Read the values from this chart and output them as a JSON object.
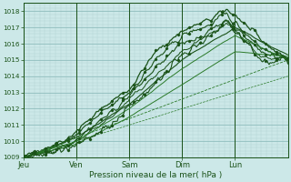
{
  "xlabel": "Pression niveau de la mer( hPa )",
  "bg_color": "#cce8e8",
  "grid_minor_color": "#aad0d0",
  "grid_major_color": "#88b8b8",
  "line_color_dark": "#1a5218",
  "line_color_mid": "#2a7a28",
  "ylim": [
    1009,
    1018.5
  ],
  "yticks": [
    1009,
    1010,
    1011,
    1012,
    1013,
    1014,
    1015,
    1016,
    1017,
    1018
  ],
  "day_labels": [
    "Jeu",
    "Ven",
    "Sam",
    "Dim",
    "Lun"
  ],
  "day_positions": [
    0,
    24,
    48,
    72,
    96
  ],
  "xlim": [
    0,
    120
  ],
  "num_points": 241
}
